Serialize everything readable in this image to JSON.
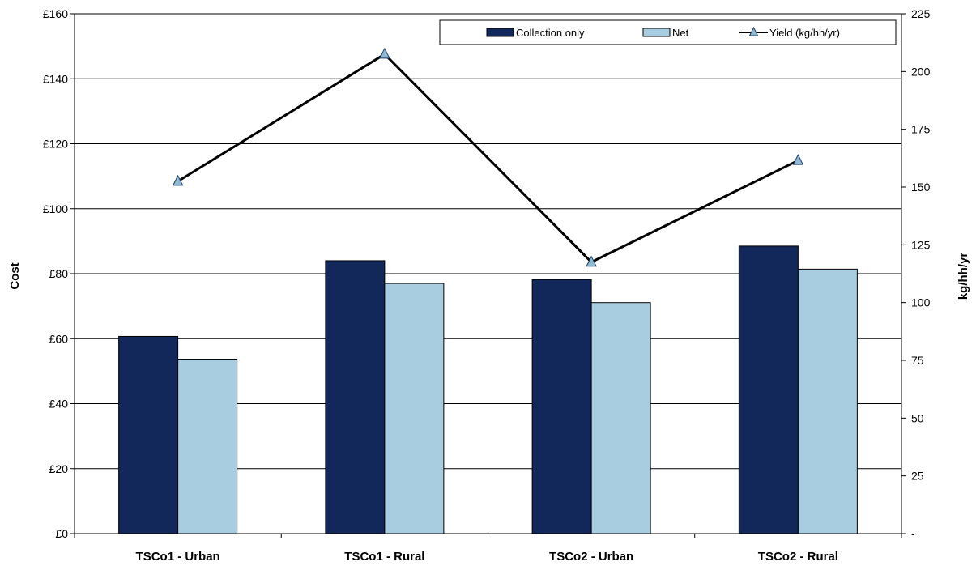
{
  "chart_data": {
    "type": "bar",
    "categories": [
      "TSCo1 - Urban",
      "TSCo1 - Rural",
      "TSCo2 - Urban",
      "TSCo2 - Rural"
    ],
    "series": [
      {
        "name": "Collection only",
        "type": "bar",
        "axis": "left",
        "color": "#13285a",
        "values": [
          60.7,
          84.0,
          78.2,
          88.5
        ]
      },
      {
        "name": "Net",
        "type": "bar",
        "axis": "left",
        "color": "#a9cde0",
        "values": [
          53.7,
          77.0,
          71.1,
          81.4
        ]
      },
      {
        "name": "Yield (kg/hh/yr)",
        "type": "line",
        "axis": "right",
        "color": "#000000",
        "marker": "triangle",
        "marker_color": "#8fb9d1",
        "values": [
          152.5,
          207.5,
          117.5,
          161.5
        ]
      }
    ],
    "ylabel": "Cost",
    "y2label": "kg/hh/yr",
    "ylim": [
      0,
      160
    ],
    "y2lim": [
      0,
      225
    ],
    "yticks": [
      "£0",
      "£20",
      "£40",
      "£60",
      "£80",
      "£100",
      "£120",
      "£140",
      "£160"
    ],
    "y2ticks": [
      "-",
      "25",
      "50",
      "75",
      "100",
      "125",
      "150",
      "175",
      "200",
      "225"
    ],
    "grid": true,
    "legend_position": "top-right"
  }
}
